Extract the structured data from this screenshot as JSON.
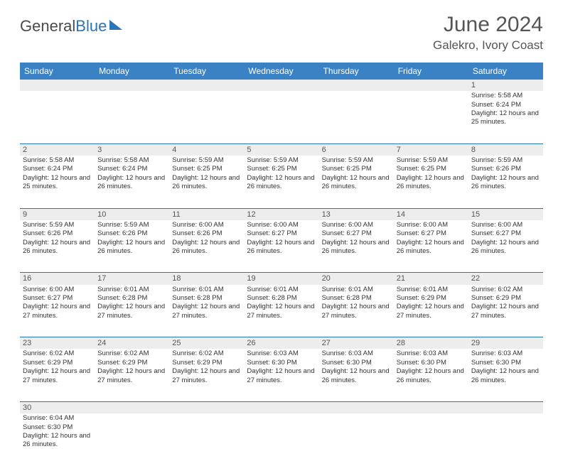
{
  "logo": {
    "text1": "General",
    "text2": "Blue"
  },
  "header": {
    "title": "June 2024",
    "location": "Galekro, Ivory Coast"
  },
  "style": {
    "header_bg": "#3a82c4",
    "header_fg": "#ffffff",
    "rule_color": "#2a74b8",
    "alt_row_bg": "#ededed",
    "page_bg": "#ffffff",
    "title_color": "#555555",
    "body_text": "#333333",
    "font_family": "Arial",
    "th_fontsize": 12,
    "cell_fontsize": 9.5,
    "title_fontsize": 30,
    "location_fontsize": 17
  },
  "weekdays": [
    "Sunday",
    "Monday",
    "Tuesday",
    "Wednesday",
    "Thursday",
    "Friday",
    "Saturday"
  ],
  "weeks": [
    [
      null,
      null,
      null,
      null,
      null,
      null,
      {
        "n": "1",
        "sr": "5:58 AM",
        "ss": "6:24 PM",
        "dl": "12 hours and 25 minutes."
      }
    ],
    [
      {
        "n": "2",
        "sr": "5:58 AM",
        "ss": "6:24 PM",
        "dl": "12 hours and 25 minutes."
      },
      {
        "n": "3",
        "sr": "5:58 AM",
        "ss": "6:24 PM",
        "dl": "12 hours and 26 minutes."
      },
      {
        "n": "4",
        "sr": "5:59 AM",
        "ss": "6:25 PM",
        "dl": "12 hours and 26 minutes."
      },
      {
        "n": "5",
        "sr": "5:59 AM",
        "ss": "6:25 PM",
        "dl": "12 hours and 26 minutes."
      },
      {
        "n": "6",
        "sr": "5:59 AM",
        "ss": "6:25 PM",
        "dl": "12 hours and 26 minutes."
      },
      {
        "n": "7",
        "sr": "5:59 AM",
        "ss": "6:25 PM",
        "dl": "12 hours and 26 minutes."
      },
      {
        "n": "8",
        "sr": "5:59 AM",
        "ss": "6:26 PM",
        "dl": "12 hours and 26 minutes."
      }
    ],
    [
      {
        "n": "9",
        "sr": "5:59 AM",
        "ss": "6:26 PM",
        "dl": "12 hours and 26 minutes."
      },
      {
        "n": "10",
        "sr": "5:59 AM",
        "ss": "6:26 PM",
        "dl": "12 hours and 26 minutes."
      },
      {
        "n": "11",
        "sr": "6:00 AM",
        "ss": "6:26 PM",
        "dl": "12 hours and 26 minutes."
      },
      {
        "n": "12",
        "sr": "6:00 AM",
        "ss": "6:27 PM",
        "dl": "12 hours and 26 minutes."
      },
      {
        "n": "13",
        "sr": "6:00 AM",
        "ss": "6:27 PM",
        "dl": "12 hours and 26 minutes."
      },
      {
        "n": "14",
        "sr": "6:00 AM",
        "ss": "6:27 PM",
        "dl": "12 hours and 26 minutes."
      },
      {
        "n": "15",
        "sr": "6:00 AM",
        "ss": "6:27 PM",
        "dl": "12 hours and 26 minutes."
      }
    ],
    [
      {
        "n": "16",
        "sr": "6:00 AM",
        "ss": "6:27 PM",
        "dl": "12 hours and 27 minutes."
      },
      {
        "n": "17",
        "sr": "6:01 AM",
        "ss": "6:28 PM",
        "dl": "12 hours and 27 minutes."
      },
      {
        "n": "18",
        "sr": "6:01 AM",
        "ss": "6:28 PM",
        "dl": "12 hours and 27 minutes."
      },
      {
        "n": "19",
        "sr": "6:01 AM",
        "ss": "6:28 PM",
        "dl": "12 hours and 27 minutes."
      },
      {
        "n": "20",
        "sr": "6:01 AM",
        "ss": "6:28 PM",
        "dl": "12 hours and 27 minutes."
      },
      {
        "n": "21",
        "sr": "6:01 AM",
        "ss": "6:29 PM",
        "dl": "12 hours and 27 minutes."
      },
      {
        "n": "22",
        "sr": "6:02 AM",
        "ss": "6:29 PM",
        "dl": "12 hours and 27 minutes."
      }
    ],
    [
      {
        "n": "23",
        "sr": "6:02 AM",
        "ss": "6:29 PM",
        "dl": "12 hours and 27 minutes."
      },
      {
        "n": "24",
        "sr": "6:02 AM",
        "ss": "6:29 PM",
        "dl": "12 hours and 27 minutes."
      },
      {
        "n": "25",
        "sr": "6:02 AM",
        "ss": "6:29 PM",
        "dl": "12 hours and 27 minutes."
      },
      {
        "n": "26",
        "sr": "6:03 AM",
        "ss": "6:30 PM",
        "dl": "12 hours and 27 minutes."
      },
      {
        "n": "27",
        "sr": "6:03 AM",
        "ss": "6:30 PM",
        "dl": "12 hours and 26 minutes."
      },
      {
        "n": "28",
        "sr": "6:03 AM",
        "ss": "6:30 PM",
        "dl": "12 hours and 26 minutes."
      },
      {
        "n": "29",
        "sr": "6:03 AM",
        "ss": "6:30 PM",
        "dl": "12 hours and 26 minutes."
      }
    ],
    [
      {
        "n": "30",
        "sr": "6:04 AM",
        "ss": "6:30 PM",
        "dl": "12 hours and 26 minutes."
      },
      null,
      null,
      null,
      null,
      null,
      null
    ]
  ],
  "labels": {
    "sunrise": "Sunrise:",
    "sunset": "Sunset:",
    "daylight": "Daylight:"
  }
}
